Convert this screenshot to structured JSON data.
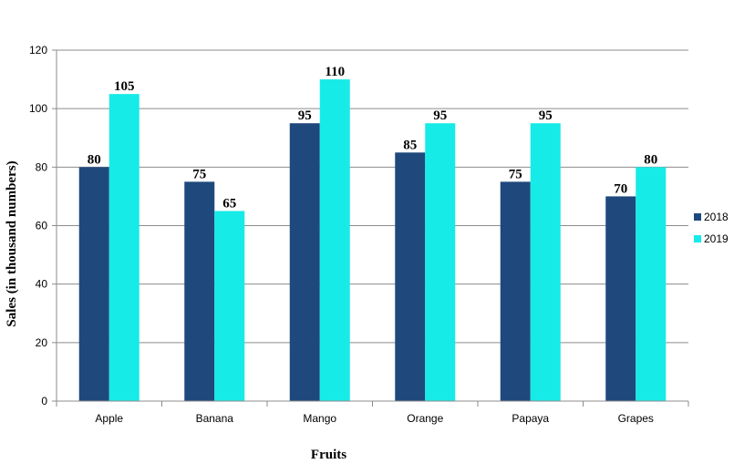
{
  "chart_data": {
    "type": "bar",
    "title": "",
    "xlabel": "Fruits",
    "ylabel": "Sales (in thousand numbers)",
    "ylim": [
      0,
      120
    ],
    "yticks": [
      0,
      20,
      40,
      60,
      80,
      100,
      120
    ],
    "grid": true,
    "legend_position": "right",
    "categories": [
      "Apple",
      "Banana",
      "Mango",
      "Orange",
      "Papaya",
      "Grapes"
    ],
    "series": [
      {
        "name": "2018",
        "color": "#1F497D",
        "values": [
          80,
          75,
          95,
          85,
          75,
          70
        ]
      },
      {
        "name": "2019",
        "color": "#17EBE8",
        "values": [
          105,
          65,
          110,
          95,
          95,
          80
        ]
      }
    ]
  }
}
